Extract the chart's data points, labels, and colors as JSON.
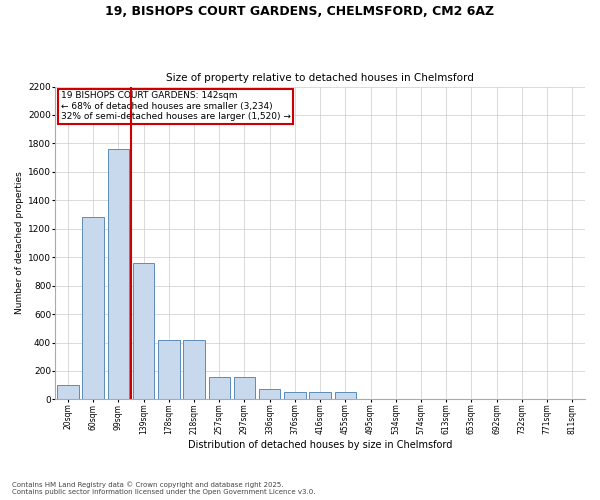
{
  "title_line1": "19, BISHOPS COURT GARDENS, CHELMSFORD, CM2 6AZ",
  "title_line2": "Size of property relative to detached houses in Chelmsford",
  "xlabel": "Distribution of detached houses by size in Chelmsford",
  "ylabel": "Number of detached properties",
  "categories": [
    "20sqm",
    "60sqm",
    "99sqm",
    "139sqm",
    "178sqm",
    "218sqm",
    "257sqm",
    "297sqm",
    "336sqm",
    "376sqm",
    "416sqm",
    "455sqm",
    "495sqm",
    "534sqm",
    "574sqm",
    "613sqm",
    "653sqm",
    "692sqm",
    "732sqm",
    "771sqm",
    "811sqm"
  ],
  "values": [
    100,
    1280,
    1760,
    960,
    415,
    415,
    160,
    160,
    75,
    50,
    50,
    50,
    0,
    0,
    0,
    0,
    0,
    0,
    0,
    0,
    0
  ],
  "bar_color": "#c9d9ed",
  "bar_edge_color": "#5b8db8",
  "vline_x": 2.5,
  "vline_color": "#cc0000",
  "annotation_title": "19 BISHOPS COURT GARDENS: 142sqm",
  "annotation_line1": "← 68% of detached houses are smaller (3,234)",
  "annotation_line2": "32% of semi-detached houses are larger (1,520) →",
  "annotation_box_color": "#cc0000",
  "ylim": [
    0,
    2200
  ],
  "yticks": [
    0,
    200,
    400,
    600,
    800,
    1000,
    1200,
    1400,
    1600,
    1800,
    2000,
    2200
  ],
  "footnote1": "Contains HM Land Registry data © Crown copyright and database right 2025.",
  "footnote2": "Contains public sector information licensed under the Open Government Licence v3.0.",
  "background_color": "#ffffff",
  "grid_color": "#cccccc"
}
